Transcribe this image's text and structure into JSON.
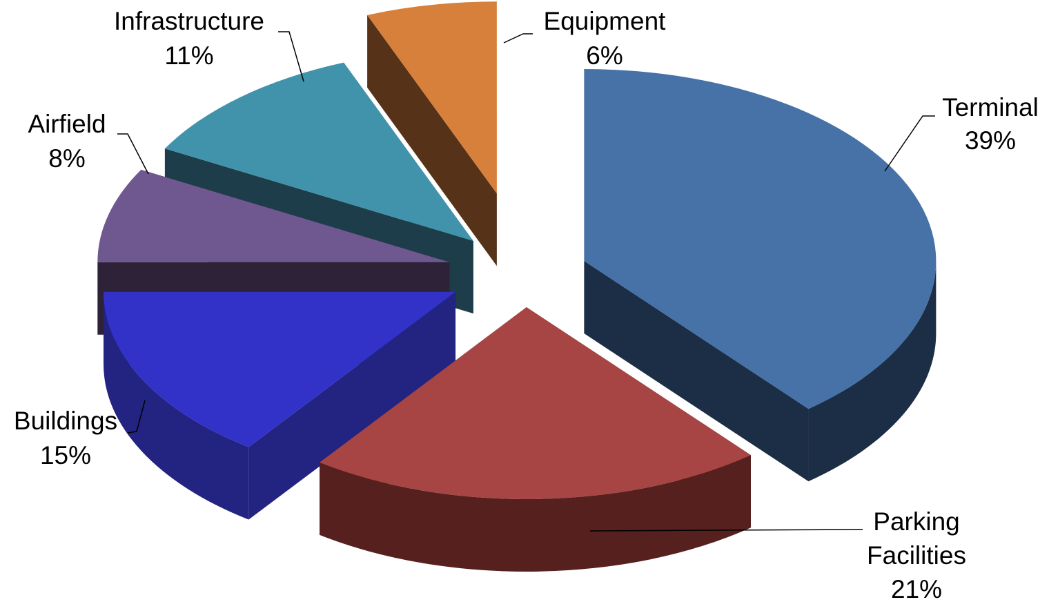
{
  "chart_data": {
    "type": "pie",
    "style": "3d-exploded",
    "title": "",
    "slices": [
      {
        "label": "Terminal",
        "value": 39,
        "value_label": "39%",
        "color": "#4672A7",
        "side_color": "#1C2D46"
      },
      {
        "label": "Parking Facilities",
        "value": 21,
        "value_label": "21%",
        "color": "#A64543",
        "side_color": "#56201E"
      },
      {
        "label": "Buildings",
        "value": 15,
        "value_label": "15%",
        "color": "#3232C8",
        "side_color": "#232382"
      },
      {
        "label": "Airfield",
        "value": 8,
        "value_label": "8%",
        "color": "#6F5890",
        "side_color": "#2D2238"
      },
      {
        "label": "Infrastructure",
        "value": 11,
        "value_label": "11%",
        "color": "#4193AB",
        "side_color": "#1C3D49"
      },
      {
        "label": "Equipment",
        "value": 6,
        "value_label": "6%",
        "color": "#D7803C",
        "side_color": "#563218"
      }
    ]
  }
}
